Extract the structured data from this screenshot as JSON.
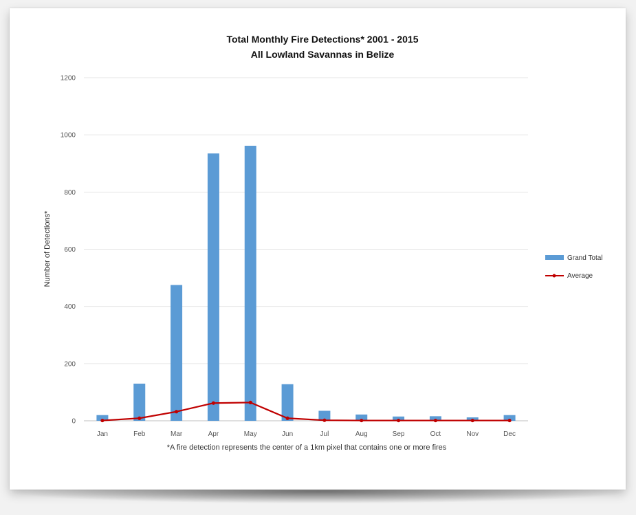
{
  "chart_data": {
    "type": "bar",
    "title": "Total Monthly Fire Detections* 2001 - 2015",
    "subtitle": "All Lowland Savannas in Belize",
    "xlabel": "",
    "ylabel": "Number of Detections*",
    "ylim": [
      0,
      1200
    ],
    "yticks": [
      "0",
      "200",
      "400",
      "600",
      "800",
      "1000",
      "1200"
    ],
    "grid": true,
    "legend_position": "right",
    "categories": [
      "Jan",
      "Feb",
      "Mar",
      "Apr",
      "May",
      "Jun",
      "Jul",
      "Aug",
      "Sep",
      "Oct",
      "Nov",
      "Dec"
    ],
    "series": [
      {
        "name": "Grand Total",
        "type": "bar",
        "color": "#5b9bd5",
        "values": [
          20,
          130,
          475,
          935,
          962,
          128,
          35,
          22,
          15,
          16,
          12,
          20
        ]
      },
      {
        "name": "Average",
        "type": "line",
        "color": "#c00000",
        "values": [
          1,
          9,
          32,
          62,
          64,
          9,
          2,
          1,
          1,
          1,
          1,
          1
        ]
      }
    ],
    "footnote": "*A fire detection represents the center of a 1km pixel that contains one or more fires"
  }
}
